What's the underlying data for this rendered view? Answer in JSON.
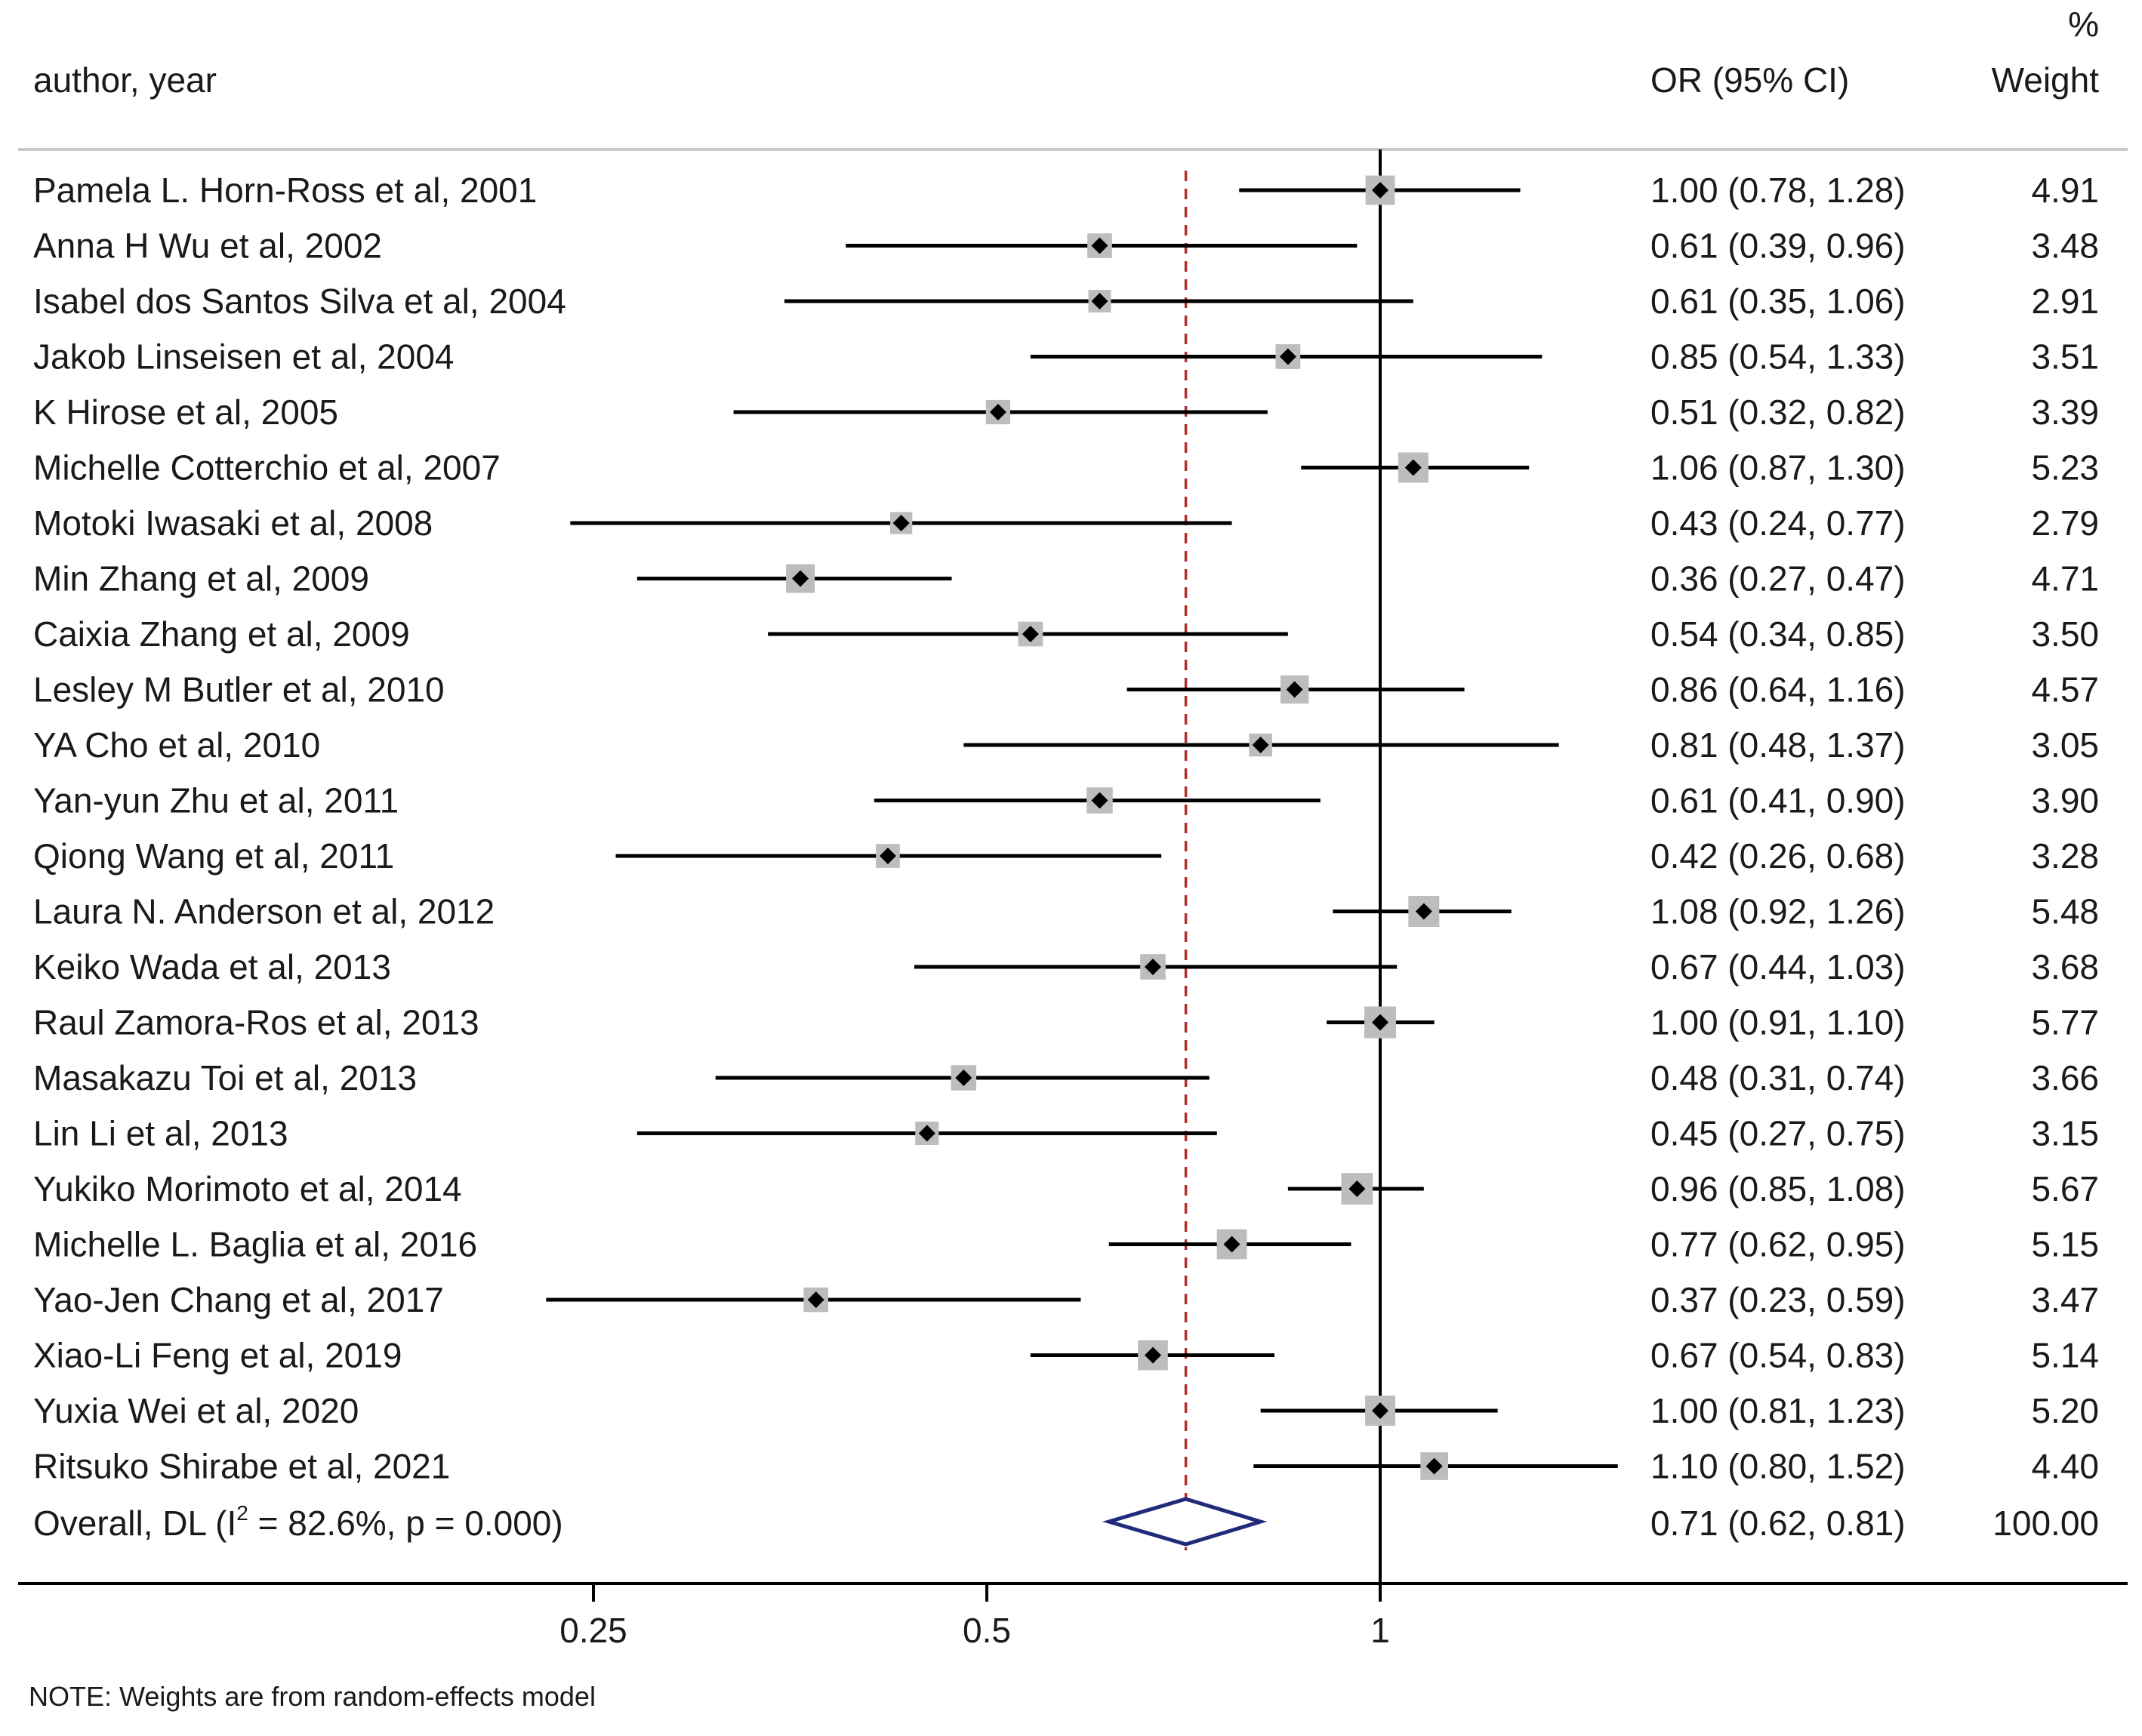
{
  "chart_data": {
    "type": "forest",
    "header": {
      "study": "author, year",
      "effect": "OR (95% CI)",
      "weight_line1": "%",
      "weight_line2": "Weight"
    },
    "studies": [
      {
        "label": "Pamela L. Horn-Ross et al, 2001",
        "or": 1.0,
        "lo": 0.78,
        "hi": 1.28,
        "ci_text": "1.00 (0.78, 1.28)",
        "weight": 4.91,
        "weight_text": "4.91"
      },
      {
        "label": "Anna H Wu et al, 2002",
        "or": 0.61,
        "lo": 0.39,
        "hi": 0.96,
        "ci_text": "0.61 (0.39, 0.96)",
        "weight": 3.48,
        "weight_text": "3.48"
      },
      {
        "label": "Isabel dos Santos Silva et al, 2004",
        "or": 0.61,
        "lo": 0.35,
        "hi": 1.06,
        "ci_text": "0.61 (0.35, 1.06)",
        "weight": 2.91,
        "weight_text": "2.91"
      },
      {
        "label": "Jakob Linseisen et al,  2004",
        "or": 0.85,
        "lo": 0.54,
        "hi": 1.33,
        "ci_text": "0.85 (0.54, 1.33)",
        "weight": 3.51,
        "weight_text": "3.51"
      },
      {
        "label": "K Hirose et al,  2005",
        "or": 0.51,
        "lo": 0.32,
        "hi": 0.82,
        "ci_text": "0.51 (0.32, 0.82)",
        "weight": 3.39,
        "weight_text": "3.39"
      },
      {
        "label": "Michelle Cotterchio et al,  2007",
        "or": 1.06,
        "lo": 0.87,
        "hi": 1.3,
        "ci_text": "1.06 (0.87, 1.30)",
        "weight": 5.23,
        "weight_text": "5.23"
      },
      {
        "label": "Motoki Iwasaki et al, 2008",
        "or": 0.43,
        "lo": 0.24,
        "hi": 0.77,
        "ci_text": "0.43 (0.24, 0.77)",
        "weight": 2.79,
        "weight_text": "2.79"
      },
      {
        "label": "Min Zhang et al, 2009",
        "or": 0.36,
        "lo": 0.27,
        "hi": 0.47,
        "ci_text": "0.36 (0.27, 0.47)",
        "weight": 4.71,
        "weight_text": "4.71"
      },
      {
        "label": "Caixia Zhang et al, 2009",
        "or": 0.54,
        "lo": 0.34,
        "hi": 0.85,
        "ci_text": "0.54 (0.34, 0.85)",
        "weight": 3.5,
        "weight_text": "3.50"
      },
      {
        "label": "Lesley M Butler et al, 2010",
        "or": 0.86,
        "lo": 0.64,
        "hi": 1.16,
        "ci_text": "0.86 (0.64, 1.16)",
        "weight": 4.57,
        "weight_text": "4.57"
      },
      {
        "label": "YA Cho et al, 2010",
        "or": 0.81,
        "lo": 0.48,
        "hi": 1.37,
        "ci_text": "0.81 (0.48, 1.37)",
        "weight": 3.05,
        "weight_text": "3.05"
      },
      {
        "label": "Yan-yun Zhu et al, 2011",
        "or": 0.61,
        "lo": 0.41,
        "hi": 0.9,
        "ci_text": "0.61 (0.41, 0.90)",
        "weight": 3.9,
        "weight_text": "3.90"
      },
      {
        "label": "Qiong Wang et al, 2011",
        "or": 0.42,
        "lo": 0.26,
        "hi": 0.68,
        "ci_text": "0.42 (0.26, 0.68)",
        "weight": 3.28,
        "weight_text": "3.28"
      },
      {
        "label": "Laura N. Anderson et al, 2012",
        "or": 1.08,
        "lo": 0.92,
        "hi": 1.26,
        "ci_text": "1.08 (0.92, 1.26)",
        "weight": 5.48,
        "weight_text": "5.48"
      },
      {
        "label": "Keiko Wada et al, 2013",
        "or": 0.67,
        "lo": 0.44,
        "hi": 1.03,
        "ci_text": "0.67 (0.44, 1.03)",
        "weight": 3.68,
        "weight_text": "3.68"
      },
      {
        "label": "Raul Zamora-Ros et al, 2013",
        "or": 1.0,
        "lo": 0.91,
        "hi": 1.1,
        "ci_text": "1.00 (0.91, 1.10)",
        "weight": 5.77,
        "weight_text": "5.77"
      },
      {
        "label": "Masakazu Toi et al, 2013",
        "or": 0.48,
        "lo": 0.31,
        "hi": 0.74,
        "ci_text": "0.48 (0.31, 0.74)",
        "weight": 3.66,
        "weight_text": "3.66"
      },
      {
        "label": "Lin Li et al, 2013",
        "or": 0.45,
        "lo": 0.27,
        "hi": 0.75,
        "ci_text": "0.45 (0.27, 0.75)",
        "weight": 3.15,
        "weight_text": "3.15"
      },
      {
        "label": "Yukiko Morimoto et al, 2014",
        "or": 0.96,
        "lo": 0.85,
        "hi": 1.08,
        "ci_text": "0.96 (0.85, 1.08)",
        "weight": 5.67,
        "weight_text": "5.67"
      },
      {
        "label": "Michelle L. Baglia et al, 2016",
        "or": 0.77,
        "lo": 0.62,
        "hi": 0.95,
        "ci_text": "0.77 (0.62, 0.95)",
        "weight": 5.15,
        "weight_text": "5.15"
      },
      {
        "label": "Yao-Jen Chang  et al, 2017",
        "or": 0.37,
        "lo": 0.23,
        "hi": 0.59,
        "ci_text": "0.37 (0.23, 0.59)",
        "weight": 3.47,
        "weight_text": "3.47"
      },
      {
        "label": "Xiao-Li Feng et al, 2019",
        "or": 0.67,
        "lo": 0.54,
        "hi": 0.83,
        "ci_text": "0.67 (0.54, 0.83)",
        "weight": 5.14,
        "weight_text": "5.14"
      },
      {
        "label": "Yuxia Wei et al, 2020",
        "or": 1.0,
        "lo": 0.81,
        "hi": 1.23,
        "ci_text": "1.00 (0.81, 1.23)",
        "weight": 5.2,
        "weight_text": "5.20"
      },
      {
        "label": "Ritsuko Shirabe et al, 2021",
        "or": 1.1,
        "lo": 0.8,
        "hi": 1.52,
        "ci_text": "1.10 (0.80, 1.52)",
        "weight": 4.4,
        "weight_text": "4.40"
      }
    ],
    "overall": {
      "label_prefix": "Overall, DL (I",
      "label_sup": "2",
      "label_suffix": " = 82.6%, p = 0.000)",
      "or": 0.71,
      "lo": 0.62,
      "hi": 0.81,
      "ci_text": "0.71 (0.62, 0.81)",
      "weight": 100.0,
      "weight_text": "100.00"
    },
    "x_axis": {
      "scale": "log",
      "ticks": [
        0.25,
        0.5,
        1
      ],
      "tick_labels": [
        "0.25",
        "0.5",
        "1"
      ],
      "null_line": 1
    },
    "note": "NOTE: Weights are from random-effects model",
    "colors": {
      "text": "#1a1a1a",
      "ci_line": "#000000",
      "weight_box": "#bdbdbd",
      "marker": "#000000",
      "overall_diamond": "#1f2a7a",
      "overall_line": "#b03030",
      "divider": "#c8c8c8"
    }
  }
}
